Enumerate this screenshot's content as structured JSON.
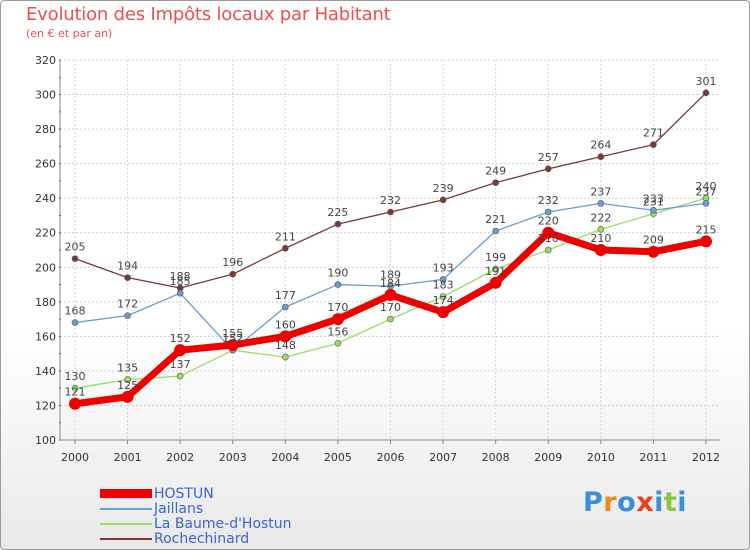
{
  "header": {
    "title": "Evolution des Impôts locaux par Habitant",
    "subtitle": "(en € et par an)"
  },
  "chart_data": {
    "type": "line",
    "title": "Evolution des Impôts locaux par Habitant",
    "subtitle": "(en € et par an)",
    "xlabel": "",
    "ylabel": "",
    "x": [
      "2000",
      "2001",
      "2002",
      "2003",
      "2004",
      "2005",
      "2006",
      "2007",
      "2008",
      "2009",
      "2010",
      "2011",
      "2012"
    ],
    "ylim": [
      100,
      320
    ],
    "yticks": [
      100,
      120,
      140,
      160,
      180,
      200,
      220,
      240,
      260,
      280,
      300,
      320
    ],
    "grid": true,
    "series": [
      {
        "name": "HOSTUN",
        "color": "#ee0000",
        "values": [
          121,
          125,
          152,
          155,
          160,
          170,
          184,
          174,
          191,
          220,
          210,
          209,
          215
        ]
      },
      {
        "name": "Jaillans",
        "color": "#6a9dd0",
        "values": [
          168,
          172,
          185,
          152,
          177,
          190,
          189,
          193,
          221,
          232,
          237,
          233,
          237
        ]
      },
      {
        "name": "La Baume-d'Hostun",
        "color": "#99dd66",
        "values": [
          130,
          135,
          137,
          152,
          148,
          156,
          170,
          183,
          199,
          210,
          222,
          231,
          240
        ]
      },
      {
        "name": "Rochechinard",
        "color": "#7a3a3a",
        "values": [
          205,
          194,
          188,
          196,
          211,
          225,
          232,
          239,
          249,
          257,
          264,
          271,
          301
        ]
      }
    ]
  },
  "legend": {
    "items": [
      {
        "label": "HOSTUN",
        "color": "#ee0000"
      },
      {
        "label": "Jaillans",
        "color": "#6a9dd0"
      },
      {
        "label": "La Baume-d'Hostun",
        "color": "#99dd66"
      },
      {
        "label": "Rochechinard",
        "color": "#7a3a3a"
      }
    ]
  },
  "logo": {
    "letters": [
      "P",
      "r",
      "o",
      "x",
      "i",
      "t",
      "i"
    ],
    "colors": [
      "#3a8fd8",
      "#ee8a1a",
      "#3a8fd8",
      "#e8401a",
      "#3a8fd8",
      "#8cc63e",
      "#3a8fd8"
    ]
  }
}
